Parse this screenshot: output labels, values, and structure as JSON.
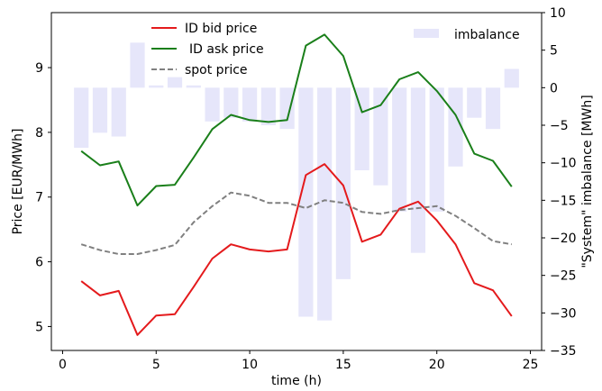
{
  "chart_data": {
    "type": "line",
    "xlabel": "time (h)",
    "ylabel_left": "Price [EUR/MWh]",
    "ylabel_right": "\"System\" imbalance [MWh]",
    "xlim": [
      -0.6,
      25.6
    ],
    "ylim_left": [
      4.63,
      9.85
    ],
    "ylim_right": [
      -35,
      10
    ],
    "x_ticks": [
      0,
      5,
      10,
      15,
      20,
      25
    ],
    "y_ticks_left": [
      5,
      6,
      7,
      8,
      9
    ],
    "y_ticks_right": [
      10,
      5,
      0,
      -5,
      -10,
      -15,
      -20,
      -25,
      -30,
      -35
    ],
    "grid": false,
    "x": [
      1,
      2,
      3,
      4,
      5,
      6,
      7,
      8,
      9,
      10,
      11,
      12,
      13,
      14,
      15,
      16,
      17,
      18,
      19,
      20,
      21,
      22,
      23,
      24
    ],
    "series": [
      {
        "name": "ID bid price",
        "axis": "left",
        "color": "#e41a1c",
        "style": "solid",
        "values": [
          5.7,
          5.48,
          5.55,
          4.87,
          5.17,
          5.19,
          5.61,
          6.05,
          6.27,
          6.19,
          6.16,
          6.19,
          7.34,
          7.51,
          7.18,
          6.31,
          6.42,
          6.82,
          6.93,
          6.64,
          6.27,
          5.67,
          5.56,
          5.16
        ]
      },
      {
        "name": "ID ask price",
        "axis": "left",
        "color": "#1a7f1a",
        "style": "solid",
        "values": [
          7.71,
          7.49,
          7.55,
          6.87,
          7.17,
          7.19,
          7.61,
          8.05,
          8.27,
          8.19,
          8.16,
          8.19,
          9.34,
          9.51,
          9.18,
          8.31,
          8.42,
          8.82,
          8.93,
          8.64,
          8.27,
          7.67,
          7.56,
          7.16
        ]
      },
      {
        "name": "spot price",
        "axis": "left",
        "color": "#808080",
        "style": "dashed",
        "values": [
          6.27,
          6.18,
          6.12,
          6.12,
          6.18,
          6.26,
          6.61,
          6.86,
          7.07,
          7.02,
          6.91,
          6.91,
          6.83,
          6.95,
          6.91,
          6.77,
          6.74,
          6.8,
          6.83,
          6.86,
          6.71,
          6.52,
          6.32,
          6.27
        ]
      },
      {
        "name": "imbalance",
        "axis": "right",
        "type": "bar",
        "color": "#e6e6fa",
        "values": [
          -8,
          -6,
          -6.5,
          6,
          0.3,
          1.4,
          0.3,
          -4.5,
          -4,
          -4.5,
          -5,
          -5.5,
          -30.5,
          -31,
          -25.5,
          -11,
          -13,
          -16.5,
          -22,
          -16.5,
          -10.5,
          -4,
          -5.5,
          2.5
        ]
      }
    ],
    "legend": {
      "left_position": "upper-left",
      "right_position": "upper-right"
    }
  }
}
